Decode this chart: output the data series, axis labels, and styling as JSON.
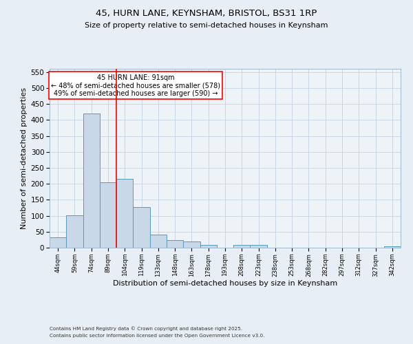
{
  "title1": "45, HURN LANE, KEYNSHAM, BRISTOL, BS31 1RP",
  "title2": "Size of property relative to semi-detached houses in Keynsham",
  "xlabel": "Distribution of semi-detached houses by size in Keynsham",
  "ylabel": "Number of semi-detached properties",
  "categories": [
    "44sqm",
    "59sqm",
    "74sqm",
    "89sqm",
    "104sqm",
    "119sqm",
    "133sqm",
    "148sqm",
    "163sqm",
    "178sqm",
    "193sqm",
    "208sqm",
    "223sqm",
    "238sqm",
    "253sqm",
    "268sqm",
    "282sqm",
    "297sqm",
    "312sqm",
    "327sqm",
    "342sqm"
  ],
  "values": [
    33,
    102,
    420,
    205,
    215,
    128,
    40,
    23,
    20,
    8,
    1,
    9,
    9,
    1,
    1,
    1,
    0,
    1,
    0,
    1,
    4
  ],
  "bar_color": "#c8d8e8",
  "bar_edge_color": "#5599bb",
  "vline_color": "red",
  "vline_x_idx": 3,
  "annotation_title": "45 HURN LANE: 91sqm",
  "annotation_line1": "← 48% of semi-detached houses are smaller (578)",
  "annotation_line2": "49% of semi-detached houses are larger (590) →",
  "annotation_box_color": "white",
  "annotation_box_edge": "red",
  "ylim": [
    0,
    560
  ],
  "yticks": [
    0,
    50,
    100,
    150,
    200,
    250,
    300,
    350,
    400,
    450,
    500,
    550
  ],
  "footnote1": "Contains HM Land Registry data © Crown copyright and database right 2025.",
  "footnote2": "Contains public sector information licensed under the Open Government Licence v3.0.",
  "bg_color": "#e8eef5",
  "plot_bg_color": "#eef3f8"
}
